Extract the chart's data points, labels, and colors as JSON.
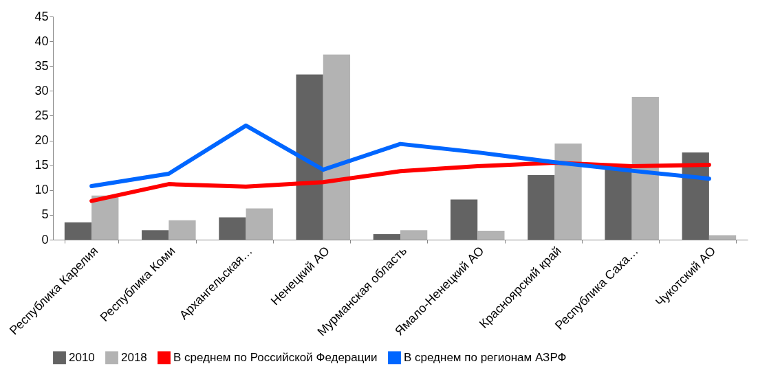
{
  "chart_data": {
    "type": "bar",
    "categories": [
      "Республика Карелия",
      "Республика Коми",
      "Архангельская…",
      "Ненецкий АО",
      "Мурманская область",
      "Ямало-Ненецкий АО",
      "Красноярский край",
      "Республика Саха…",
      "Чукотский АО"
    ],
    "series": [
      {
        "name": "2010",
        "color": "#636363",
        "values": [
          3.5,
          1.9,
          4.5,
          33.3,
          1.1,
          8.1,
          13,
          15,
          17.6
        ]
      },
      {
        "name": "2018",
        "color": "#b3b3b3",
        "values": [
          8.9,
          3.9,
          6.3,
          37.3,
          1.9,
          1.8,
          19.4,
          28.8,
          0.9
        ]
      },
      {
        "name": "В среднем по Российской Федерации",
        "type": "line",
        "color": "#ff0000",
        "values": [
          7.8,
          11.2,
          10.7,
          11.6,
          13.8,
          14.8,
          15.5,
          14.8,
          15.1
        ]
      },
      {
        "name": "В среднем по регионам АЗРФ",
        "type": "line",
        "color": "#0066ff",
        "values": [
          10.8,
          13.3,
          23,
          14.1,
          19.3,
          17.6,
          15.6,
          13.9,
          12.3
        ]
      }
    ],
    "ylim": [
      0,
      45
    ],
    "yticks": [
      0,
      5,
      10,
      15,
      20,
      25,
      30,
      35,
      40,
      45
    ],
    "grid": false,
    "legend": "bottom",
    "marker": "none",
    "line_style": "solid"
  }
}
